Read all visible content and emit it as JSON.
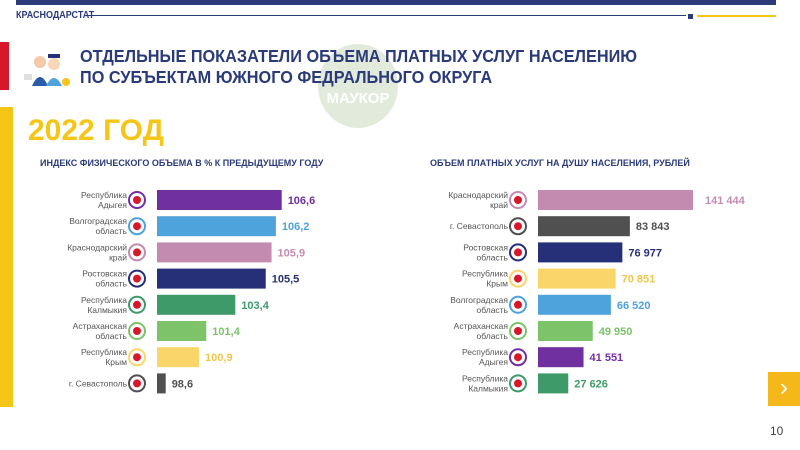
{
  "header": {
    "org": "КРАСНОДАРСТАТ",
    "title_line1": "ОТДЕЛЬНЫЕ ПОКАЗАТЕЛИ ОБЪЕМА ПЛАТНЫХ УСЛУГ НАСЕЛЕНИЮ",
    "title_line2": "ПО СУБЪЕКТАМ ЮЖНОГО ФЕДРАЛЬНОГО ОКРУГА",
    "watermark": "МАУКОР",
    "year": "2022 ГОД"
  },
  "chart_data": [
    {
      "type": "bar",
      "orientation": "horizontal",
      "title": "ИНДЕКС ФИЗИЧЕСКОГО ОБЪЕМА В % К ПРЕДЫДУЩЕМУ ГОДУ",
      "categories": [
        [
          "Республика",
          "Адыгея"
        ],
        [
          "Волгоградская",
          "область"
        ],
        [
          "Краснодарский",
          "край"
        ],
        [
          "Ростовская",
          "область"
        ],
        [
          "Республика",
          "Калмыкия"
        ],
        [
          "Астраханская",
          "область"
        ],
        [
          "Республика",
          "Крым"
        ],
        [
          "г. Севастополь"
        ]
      ],
      "values": [
        106.6,
        106.2,
        105.9,
        105.5,
        103.4,
        101.4,
        100.9,
        98.6
      ],
      "labels": [
        "106,6",
        "106,2",
        "105,9",
        "105,5",
        "103,4",
        "101,4",
        "100,9",
        "98,6"
      ],
      "colors": [
        "#7030a0",
        "#4fa3dc",
        "#c48bb0",
        "#263078",
        "#3f9a6a",
        "#7cc36a",
        "#fad66a",
        "#505050"
      ],
      "xlim": [
        98,
        107
      ],
      "grid": false
    },
    {
      "type": "bar",
      "orientation": "horizontal",
      "title": "ОБЪЕМ ПЛАТНЫХ УСЛУГ НА ДУШУ НАСЕЛЕНИЯ, РУБЛЕЙ",
      "categories": [
        [
          "Краснодарский",
          "край"
        ],
        [
          "г. Севастополь"
        ],
        [
          "Ростовская",
          "область"
        ],
        [
          "Республика",
          "Крым"
        ],
        [
          "Волгоградская",
          "область"
        ],
        [
          "Астраханская",
          "область"
        ],
        [
          "Республика",
          "Адыгея"
        ],
        [
          "Республика",
          "Калмыкия"
        ]
      ],
      "values": [
        141444,
        83843,
        76977,
        70851,
        66520,
        49950,
        41551,
        27626
      ],
      "labels": [
        "141 444",
        "83 843",
        "76 977",
        "70 851",
        "66 520",
        "49 950",
        "41 551",
        "27 626"
      ],
      "colors": [
        "#c48bb0",
        "#505050",
        "#263078",
        "#fad66a",
        "#4fa3dc",
        "#7cc36a",
        "#7030a0",
        "#3f9a6a"
      ],
      "xlim": [
        0,
        141444
      ],
      "grid": false
    }
  ],
  "footer": {
    "page": "10",
    "next_icon": "chevron-right-icon"
  }
}
